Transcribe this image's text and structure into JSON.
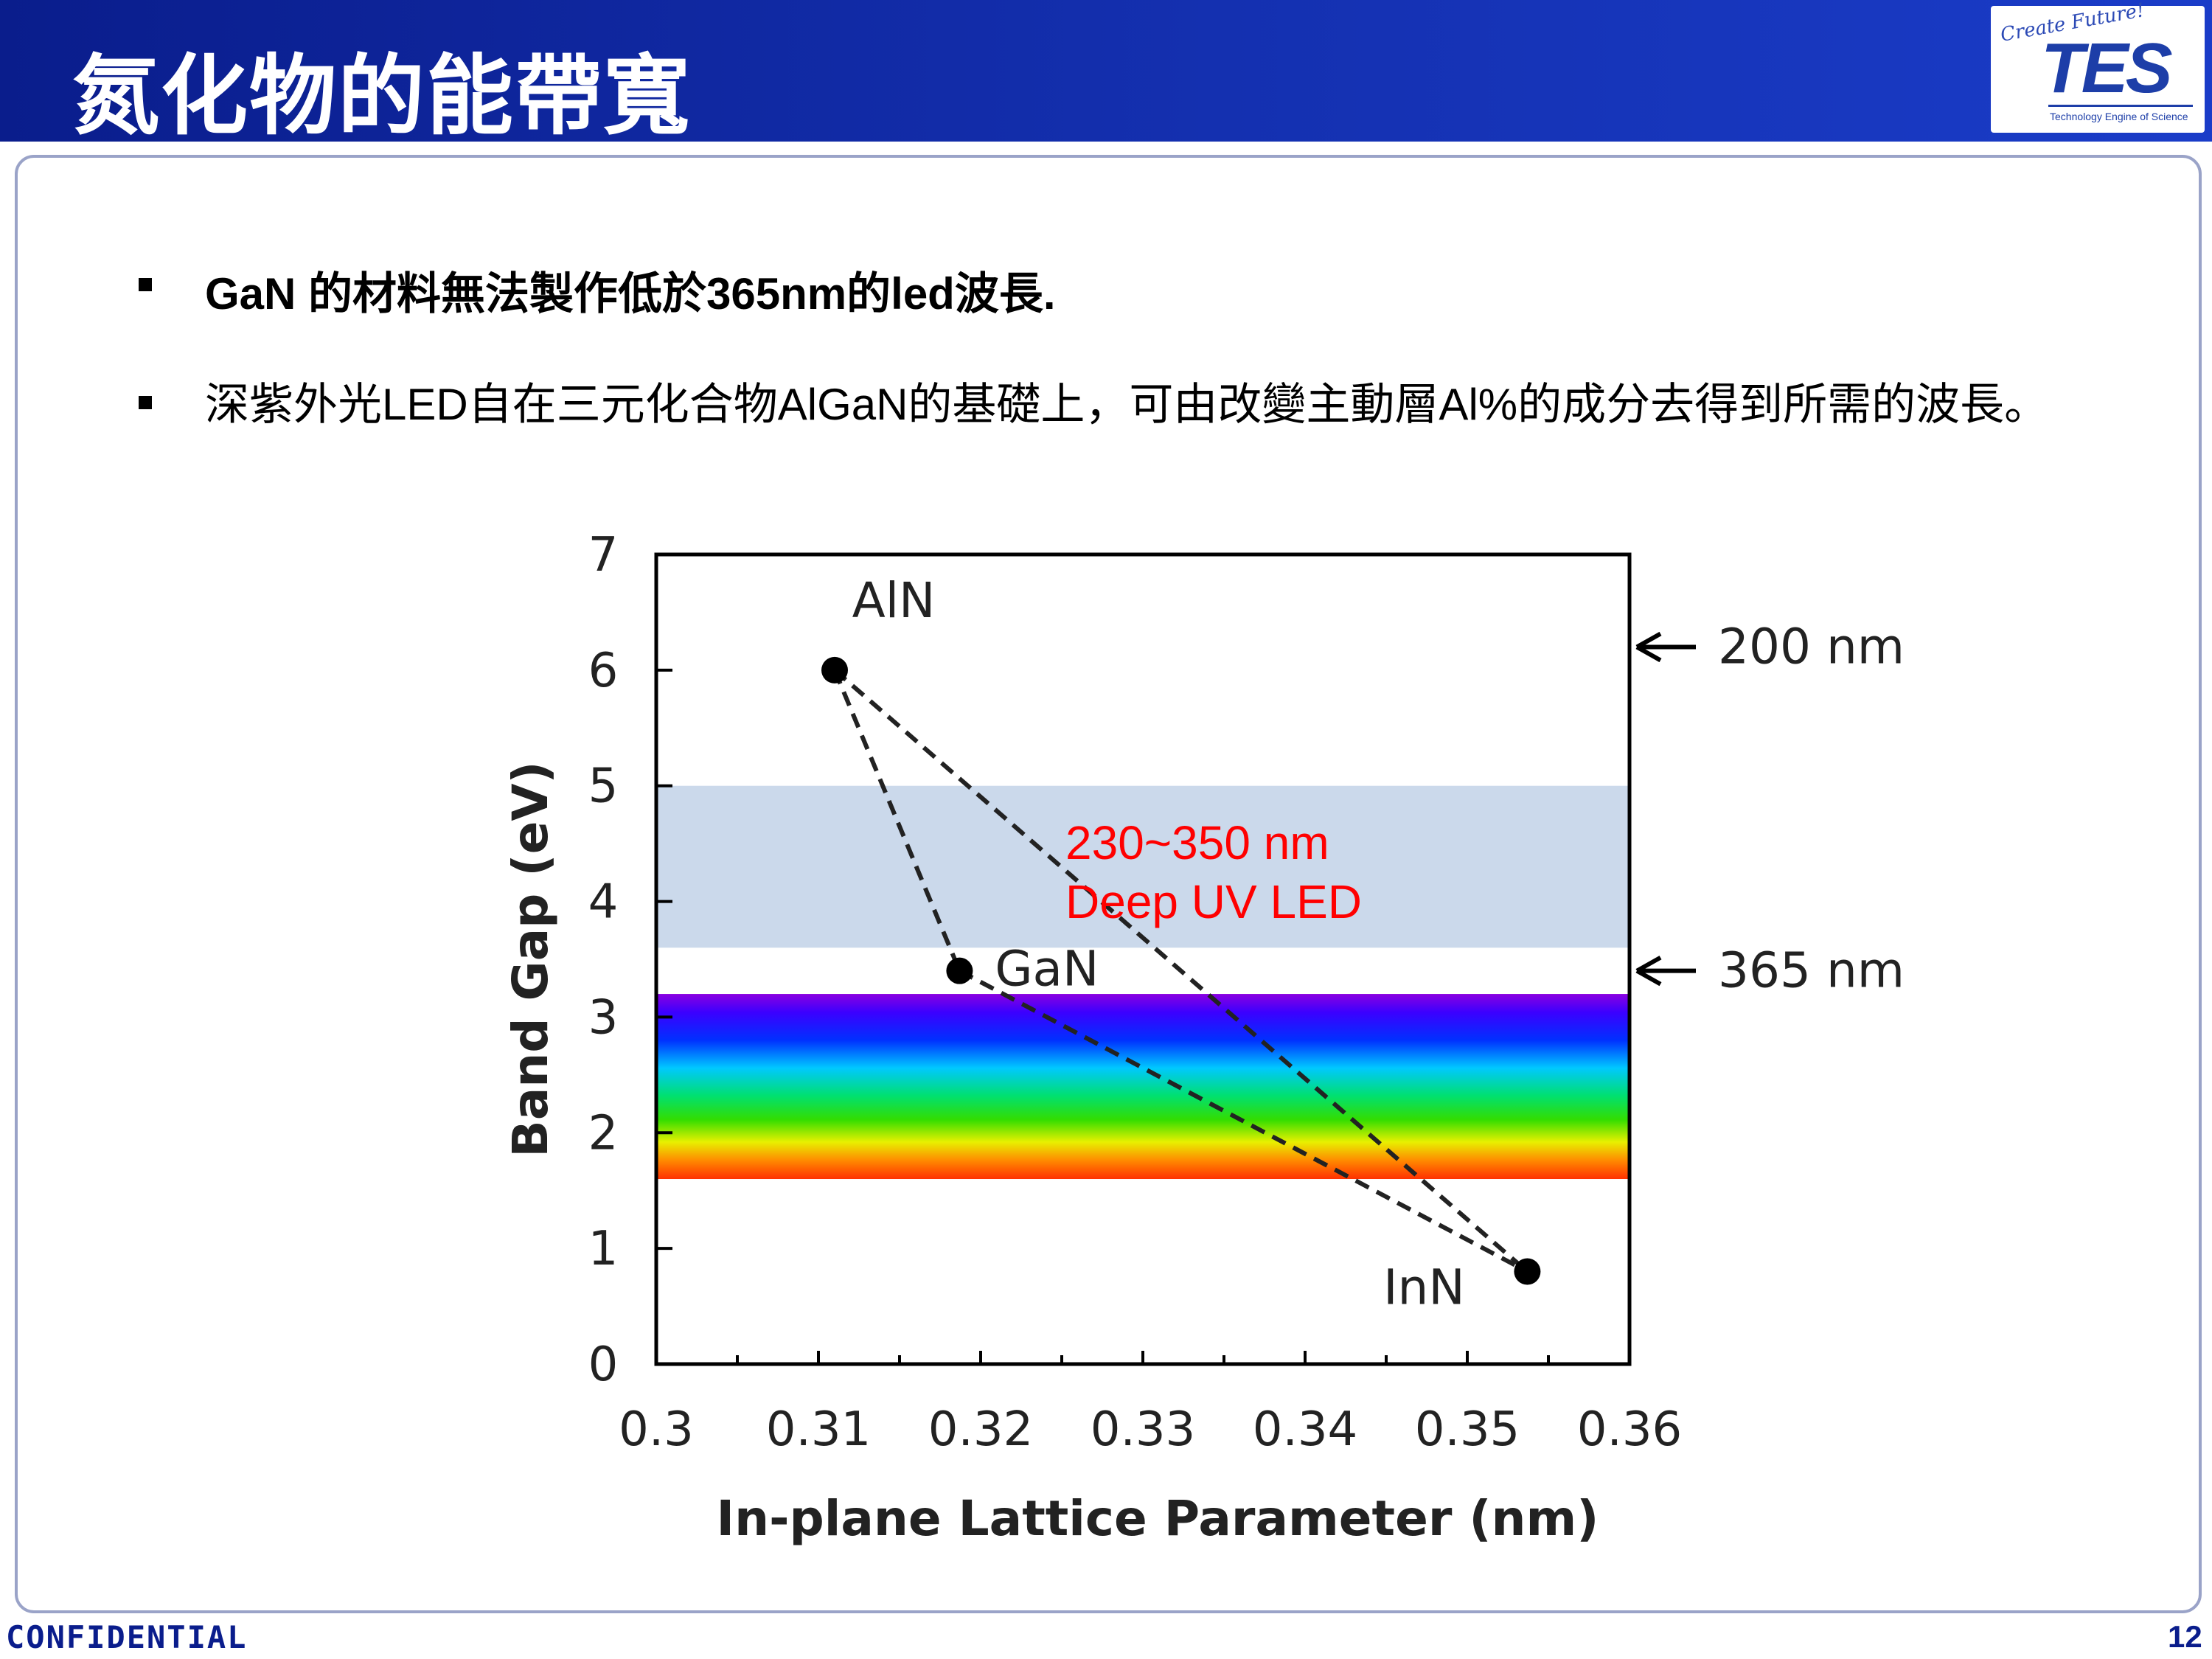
{
  "slide": {
    "title": "氮化物的能帶寬",
    "logo": {
      "script": "Create Future!",
      "brand": "TES",
      "tagline": "Technology Engine of Science"
    },
    "bullets": [
      "GaN 的材料無法製作低於365nm的led波長.",
      "深紫外光LED自在三元化合物AlGaN的基礎上，可由改變主動層Al%的成分去得到所需的波長。"
    ],
    "footer_left": "CONFIDENTIAL",
    "page_number": "12"
  },
  "colors": {
    "header_blue": "#1430b0",
    "annotation_red": "#ff0000",
    "uv_band": "#c8d7ea"
  },
  "chart_data": {
    "type": "scatter",
    "xlabel": "In-plane Lattice Parameter (nm)",
    "ylabel": "Band Gap (eV)",
    "xlim": [
      0.3,
      0.36
    ],
    "ylim": [
      0,
      7
    ],
    "x_ticks": [
      "0.3",
      "0.31",
      "0.32",
      "0.33",
      "0.34",
      "0.35",
      "0.36"
    ],
    "y_ticks": [
      "0",
      "1",
      "2",
      "3",
      "4",
      "5",
      "6",
      "7"
    ],
    "points": [
      {
        "label": "AlN",
        "x": 0.311,
        "y": 6.0
      },
      {
        "label": "GaN",
        "x": 0.3187,
        "y": 3.4
      },
      {
        "label": "InN",
        "x": 0.3537,
        "y": 0.8
      }
    ],
    "connections": [
      [
        "AlN",
        "GaN"
      ],
      [
        "GaN",
        "InN"
      ],
      [
        "AlN",
        "InN"
      ]
    ],
    "bands": [
      {
        "name": "deep-uv",
        "y_range": [
          3.6,
          5.0
        ],
        "color": "#c8d7ea"
      },
      {
        "name": "visible",
        "y_range": [
          1.6,
          3.2
        ]
      }
    ],
    "band_annotation": [
      "230~350 nm",
      "Deep UV LED"
    ],
    "arrow_markers": [
      {
        "label": "200 nm",
        "y": 6.2
      },
      {
        "label": "365 nm",
        "y": 3.4
      }
    ],
    "grid": false
  }
}
